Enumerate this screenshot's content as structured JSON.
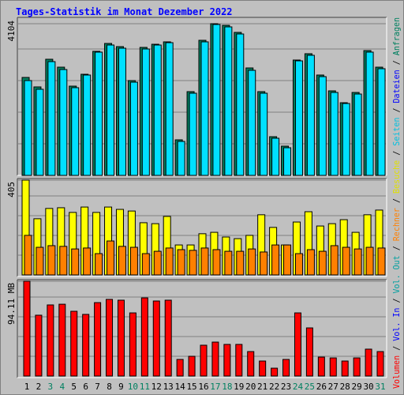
{
  "chart_data": {
    "type": "bar",
    "title": "Tages-Statistik im Monat Dezember 2022",
    "categories": [
      "1",
      "2",
      "3",
      "4",
      "5",
      "6",
      "7",
      "8",
      "9",
      "10",
      "11",
      "12",
      "13",
      "14",
      "15",
      "16",
      "17",
      "18",
      "19",
      "20",
      "21",
      "22",
      "23",
      "24",
      "25",
      "26",
      "27",
      "28",
      "29",
      "30",
      "31"
    ],
    "category_colors": [
      "#000000",
      "#000000",
      "#008060",
      "#008060",
      "#000000",
      "#000000",
      "#000000",
      "#000000",
      "#000000",
      "#008060",
      "#008060",
      "#000000",
      "#000000",
      "#000000",
      "#000000",
      "#000000",
      "#008060",
      "#008060",
      "#000000",
      "#000000",
      "#000000",
      "#000000",
      "#000000",
      "#008060",
      "#008060",
      "#000000",
      "#000000",
      "#000000",
      "#000000",
      "#000000",
      "#008060"
    ],
    "legend_separator": " / ",
    "legend": [
      {
        "label": "Volumen",
        "color": "#ff0000"
      },
      {
        "label": "Vol. In",
        "color": "#0000ff"
      },
      {
        "label": "Vol. Out",
        "color": "#00a0a0"
      },
      {
        "label": "Rechner",
        "color": "#ff8000"
      },
      {
        "label": "Besuche",
        "color": "#e0e000"
      },
      {
        "label": "Seiten",
        "color": "#00c0e0"
      },
      {
        "label": "Dateien",
        "color": "#0000ff"
      },
      {
        "label": "Anfragen",
        "color": "#008060"
      }
    ],
    "panels": [
      {
        "ylim": [
          0,
          4104
        ],
        "yticks": [
          4104
        ],
        "series": [
          {
            "color": "#008060",
            "values": [
              2650,
              2394,
              3142,
              2928,
              2415,
              2736,
              3356,
              3570,
              3484,
              2565,
              3463,
              3548,
              3613,
              962,
              2266,
              3655,
              4104,
              4061,
              3869,
              2907,
              2266,
              1047,
              791,
              3121,
              3292,
              2715,
              2287,
              1966,
              2244,
              3377,
              2928
            ]
          },
          {
            "color": "#00e0ff",
            "values": [
              2565,
              2330,
              3078,
              2864,
              2373,
              2715,
              3335,
              3527,
              3441,
              2522,
              3420,
              3527,
              3591,
              919,
              2223,
              3613,
              4083,
              4018,
              3826,
              2843,
              2223,
              1005,
              748,
              3099,
              3249,
              2672,
              2244,
              1945,
              2201,
              3335,
              2886
            ]
          }
        ]
      },
      {
        "ylim": [
          0,
          405
        ],
        "yticks": [
          405
        ],
        "series": [
          {
            "color": "#ffff00",
            "values": [
              405,
              240,
              284,
              287,
              267,
              290,
              267,
              290,
              280,
              273,
              223,
              219,
              250,
              128,
              128,
              176,
              182,
              162,
              155,
              169,
              257,
              203,
              128,
              226,
              270,
              209,
              219,
              236,
              182,
              257,
              277
            ]
          },
          {
            "color": "#ff8000",
            "values": [
              169,
              118,
              125,
              122,
              111,
              115,
              91,
              145,
              122,
              118,
              91,
              101,
              115,
              108,
              105,
              115,
              108,
              101,
              101,
              111,
              98,
              128,
              128,
              91,
              108,
              101,
              125,
              118,
              111,
              118,
              115
            ]
          }
        ]
      },
      {
        "ylim": [
          0,
          94.11
        ],
        "yticks": [
          {
            "value": 94.11,
            "label": "94.11 MB"
          }
        ],
        "series": [
          {
            "color": "#ff0000",
            "values": [
              94.11,
              60.4,
              70.6,
              71.3,
              64.3,
              61.2,
              72.9,
              76.1,
              75.3,
              62.7,
              77.6,
              74.5,
              75.3,
              16.5,
              19.6,
              30.6,
              33.7,
              31.4,
              31.4,
              24.3,
              14.9,
              7.8,
              16.5,
              62.7,
              47.8,
              18.8,
              18.0,
              14.9,
              18.0,
              26.7,
              24.3
            ]
          }
        ]
      }
    ]
  }
}
